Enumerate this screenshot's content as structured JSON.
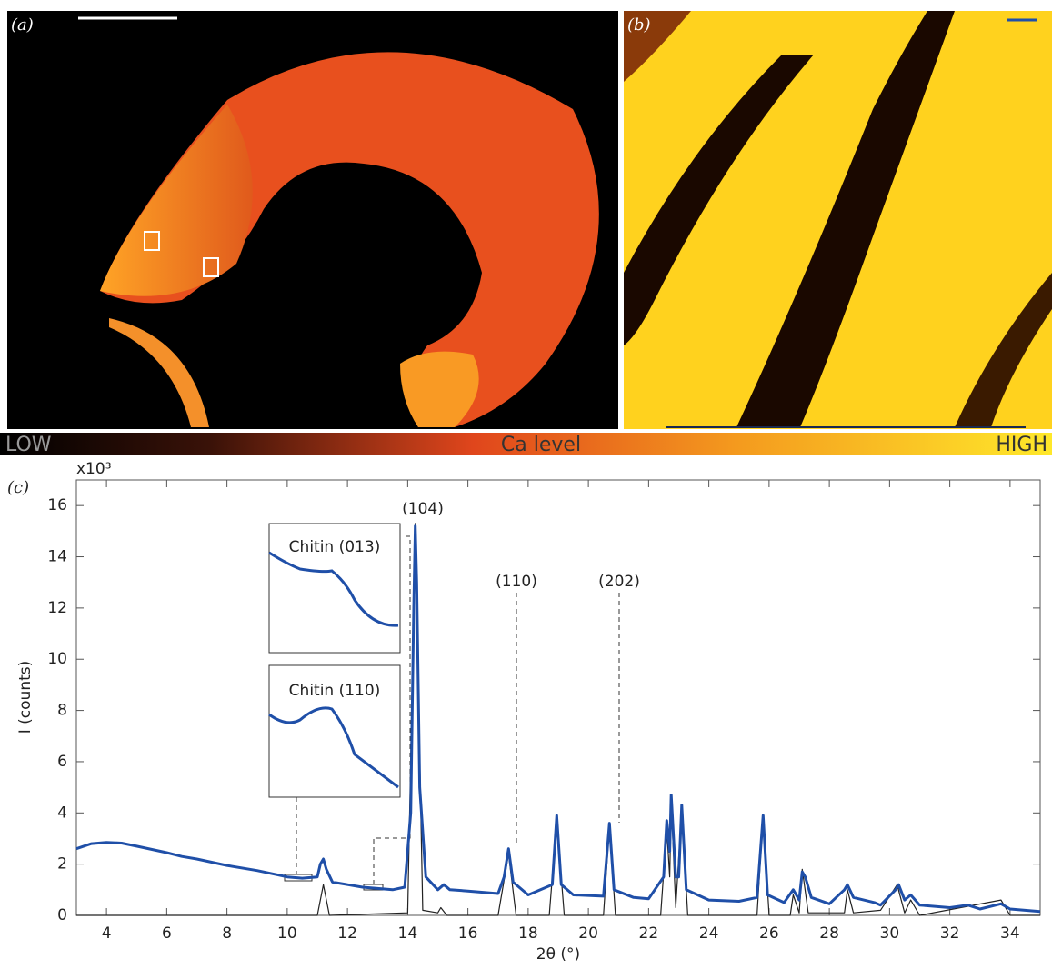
{
  "panel_labels": [
    "(a)",
    "(b)",
    "(c)"
  ],
  "colorbar": {
    "low": "LOW",
    "label": "Ca level",
    "high": "HIGH"
  },
  "chart_data": {
    "type": "line",
    "y_multiplier": "x10³",
    "xlabel": "2θ (°)",
    "ylabel": "I (counts)",
    "xlim": [
      3,
      35
    ],
    "xticks": [
      4,
      6,
      8,
      10,
      12,
      14,
      16,
      18,
      20,
      22,
      24,
      26,
      28,
      30,
      32,
      34
    ],
    "ylim": [
      0,
      17
    ],
    "yticks": [
      0,
      2,
      4,
      6,
      8,
      10,
      12,
      14,
      16
    ],
    "annotations": [
      "(104)",
      "(110)",
      "(202)"
    ],
    "insets": [
      "Chitin (013)",
      "Chitin (110)"
    ],
    "series": [
      {
        "color": "#1f4fa8",
        "x": [
          3,
          3.5,
          4,
          4.5,
          5,
          6,
          6.5,
          7,
          8,
          9,
          10,
          10.5,
          11,
          11.1,
          11.2,
          11.3,
          11.5,
          12,
          12.5,
          13,
          13.5,
          13.9,
          14.1,
          14.2,
          14.25,
          14.3,
          14.4,
          14.6,
          15,
          15.2,
          15.4,
          16,
          17,
          17.2,
          17.35,
          17.5,
          18,
          18.8,
          18.95,
          19.1,
          19.5,
          20.5,
          20.7,
          20.85,
          21.5,
          22,
          22.5,
          22.6,
          22.7,
          22.75,
          22.9,
          23,
          23.1,
          23.25,
          24,
          25,
          25.6,
          25.8,
          25.95,
          26.5,
          26.8,
          27,
          27.1,
          27.2,
          27.4,
          28,
          28.5,
          28.6,
          28.8,
          29.5,
          29.7,
          30.2,
          30.3,
          30.5,
          30.7,
          31,
          32,
          32.6,
          33,
          33.7,
          34,
          35
        ],
        "values": [
          2.6,
          2.8,
          2.85,
          2.82,
          2.7,
          2.45,
          2.3,
          2.2,
          1.95,
          1.75,
          1.5,
          1.45,
          1.5,
          2.0,
          2.2,
          1.8,
          1.3,
          1.2,
          1.1,
          1.05,
          1.0,
          1.1,
          4,
          12,
          15.2,
          13,
          5,
          1.5,
          1.0,
          1.2,
          1.0,
          0.95,
          0.85,
          1.5,
          2.6,
          1.3,
          0.8,
          1.2,
          3.9,
          1.2,
          0.8,
          0.75,
          3.6,
          1.0,
          0.7,
          0.65,
          1.5,
          3.7,
          2.5,
          4.7,
          1.5,
          1.5,
          4.3,
          1.0,
          0.6,
          0.55,
          0.7,
          3.9,
          0.8,
          0.5,
          1.0,
          0.6,
          1.7,
          1.5,
          0.7,
          0.45,
          1.0,
          1.2,
          0.7,
          0.5,
          0.4,
          1.0,
          1.2,
          0.6,
          0.8,
          0.4,
          0.3,
          0.4,
          0.25,
          0.45,
          0.25,
          0.15
        ]
      },
      {
        "color": "#222222",
        "x": [
          3,
          11,
          11.2,
          11.4,
          14,
          14.25,
          14.5,
          15,
          15.1,
          15.3,
          17,
          17.35,
          17.6,
          18.7,
          18.95,
          19.2,
          20.5,
          20.7,
          20.9,
          22.4,
          22.6,
          22.7,
          22.75,
          22.9,
          23.1,
          23.3,
          25.6,
          25.8,
          26,
          26.7,
          26.8,
          27,
          27.1,
          27.3,
          28.5,
          28.6,
          28.8,
          29.7,
          30.25,
          30.5,
          30.7,
          31,
          33.7,
          34,
          35
        ],
        "values": [
          0,
          0,
          1.2,
          0,
          0.1,
          15.3,
          0.2,
          0.1,
          0.3,
          0,
          0,
          2.4,
          0,
          0,
          3.7,
          0,
          0,
          3.5,
          0,
          0,
          3.4,
          1.5,
          4.5,
          0.3,
          4.2,
          0,
          0,
          3.9,
          0,
          0,
          0.8,
          0.1,
          1.8,
          0.1,
          0.1,
          1.0,
          0.1,
          0.2,
          1.2,
          0.1,
          0.6,
          0,
          0.6,
          0,
          0
        ]
      }
    ]
  }
}
